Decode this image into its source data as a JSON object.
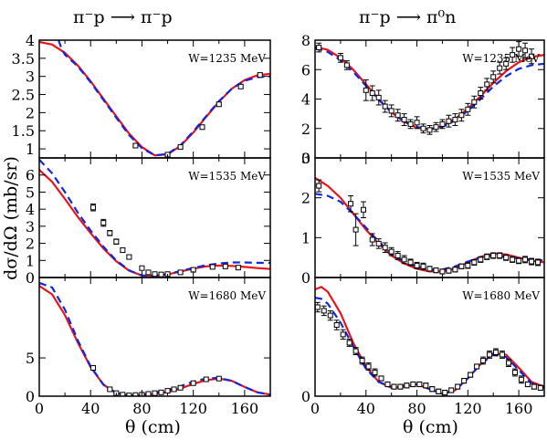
{
  "column_titles": {
    "left": "π⁻p ⟶ π⁻p",
    "right": "π⁻p ⟶ π⁰n"
  },
  "axis_labels": {
    "y": "dσ/dΩ (mb/sr)",
    "x_left": "θ (cm)",
    "x_right": "θ (cm)"
  },
  "colors": {
    "model_solid": "#e8141b",
    "model_dashed": "#1327e0",
    "data_marker": "#000000"
  },
  "chart_data": [
    {
      "type": "line",
      "panel": "left-top",
      "annotation": "W=1235 MeV",
      "xlim": [
        0,
        180
      ],
      "ylim": [
        0.75,
        4.0
      ],
      "xticks": [
        0,
        40,
        80,
        120,
        160
      ],
      "yticks": [
        1,
        1.5,
        2,
        2.5,
        3,
        3.5,
        4
      ],
      "ytick_labels": [
        "1",
        "1.5",
        "2",
        "2.5",
        "3",
        "3.5",
        "4"
      ],
      "series": [
        {
          "style": "solid",
          "x": [
            0,
            10,
            20,
            30,
            40,
            50,
            60,
            70,
            80,
            90,
            100,
            110,
            120,
            130,
            140,
            150,
            160,
            170,
            180
          ],
          "y": [
            3.95,
            3.88,
            3.65,
            3.3,
            2.87,
            2.38,
            1.9,
            1.42,
            1.05,
            0.82,
            0.85,
            1.08,
            1.45,
            1.88,
            2.3,
            2.66,
            2.9,
            3.03,
            3.07
          ]
        },
        {
          "style": "dashed",
          "x": [
            15,
            17,
            20,
            30,
            40,
            50,
            60,
            70,
            80,
            90,
            100,
            110,
            120,
            130,
            140,
            150,
            160,
            170,
            180
          ],
          "y": [
            4.0,
            3.8,
            3.6,
            3.28,
            2.84,
            2.35,
            1.86,
            1.38,
            1.02,
            0.82,
            0.86,
            1.1,
            1.48,
            1.9,
            2.32,
            2.66,
            2.88,
            2.98,
            3.0
          ]
        }
      ],
      "data_points": {
        "x": [
          75,
          100,
          110,
          127,
          140,
          157,
          172
        ],
        "y": [
          1.09,
          0.84,
          1.05,
          1.6,
          2.23,
          2.72,
          3.04
        ],
        "err": [
          0.03,
          0.03,
          0.03,
          0.03,
          0.04,
          0.04,
          0.05
        ]
      }
    },
    {
      "type": "line",
      "panel": "left-middle",
      "annotation": "W=1535 MeV",
      "xlim": [
        0,
        180
      ],
      "ylim": [
        0,
        7
      ],
      "xticks": [
        0,
        40,
        80,
        120,
        160
      ],
      "yticks": [
        0,
        1,
        2,
        3,
        4,
        5,
        6
      ],
      "ytick_labels": [
        "0",
        "1",
        "2",
        "3",
        "4",
        "5",
        "6"
      ],
      "series": [
        {
          "style": "solid",
          "x": [
            0,
            10,
            20,
            30,
            40,
            50,
            60,
            70,
            80,
            90,
            100,
            110,
            120,
            130,
            140,
            150,
            160,
            170,
            180
          ],
          "y": [
            6.3,
            5.6,
            4.6,
            3.55,
            2.6,
            1.7,
            0.95,
            0.4,
            0.12,
            0.1,
            0.18,
            0.35,
            0.52,
            0.65,
            0.7,
            0.68,
            0.62,
            0.55,
            0.5
          ]
        },
        {
          "style": "dashed",
          "x": [
            0,
            10,
            20,
            30,
            40,
            50,
            60,
            70,
            80,
            90,
            100,
            110,
            120,
            130,
            140,
            150,
            160,
            170,
            180
          ],
          "y": [
            6.9,
            6.1,
            5.0,
            3.8,
            2.75,
            1.8,
            1.0,
            0.42,
            0.12,
            0.1,
            0.2,
            0.38,
            0.56,
            0.72,
            0.82,
            0.88,
            0.88,
            0.86,
            0.85
          ]
        }
      ],
      "data_points": {
        "x": [
          42,
          50,
          55,
          60,
          65,
          70,
          80,
          85,
          90,
          95,
          100,
          110,
          120,
          135,
          145,
          155
        ],
        "y": [
          4.1,
          3.2,
          2.6,
          2.1,
          1.6,
          1.2,
          0.55,
          0.3,
          0.2,
          0.18,
          0.2,
          0.3,
          0.45,
          0.62,
          0.65,
          0.58
        ],
        "err": [
          0.2,
          0.2,
          0.15,
          0.15,
          0.12,
          0.1,
          0.08,
          0.06,
          0.05,
          0.05,
          0.05,
          0.05,
          0.05,
          0.05,
          0.05,
          0.05
        ]
      }
    },
    {
      "type": "line",
      "panel": "left-bottom",
      "annotation": "W=1680 MeV",
      "xlim": [
        0,
        180
      ],
      "ylim": [
        0,
        15.5
      ],
      "xticks": [
        0,
        40,
        80,
        120,
        160
      ],
      "xtick_labels": [
        "0",
        "40",
        "80",
        "120",
        "160"
      ],
      "yticks": [
        0,
        5
      ],
      "ytick_labels": [
        "0",
        "5"
      ],
      "series": [
        {
          "style": "solid",
          "x": [
            0,
            10,
            20,
            30,
            40,
            50,
            60,
            70,
            80,
            90,
            100,
            110,
            120,
            130,
            140,
            150,
            160,
            170,
            180
          ],
          "y": [
            14.4,
            13.3,
            10.6,
            7.0,
            3.8,
            1.5,
            0.4,
            0.1,
            0.15,
            0.3,
            0.55,
            1.0,
            1.6,
            2.1,
            2.3,
            2.0,
            1.2,
            0.5,
            0.2
          ]
        },
        {
          "style": "dashed",
          "x": [
            0,
            10,
            20,
            30,
            40,
            50,
            60,
            70,
            80,
            90,
            100,
            110,
            120,
            130,
            140,
            150,
            160,
            170,
            180
          ],
          "y": [
            14.8,
            14.2,
            11.3,
            7.3,
            3.9,
            1.5,
            0.4,
            0.1,
            0.2,
            0.45,
            0.8,
            1.3,
            1.9,
            2.3,
            2.4,
            2.0,
            1.2,
            0.5,
            0.2
          ]
        }
      ],
      "data_points": {
        "x": [
          42,
          55,
          60,
          65,
          70,
          75,
          80,
          85,
          90,
          95,
          100,
          105,
          110,
          120,
          130,
          140
        ],
        "y": [
          3.7,
          0.9,
          0.4,
          0.2,
          0.1,
          0.15,
          0.2,
          0.3,
          0.4,
          0.5,
          0.7,
          0.9,
          1.1,
          1.7,
          2.2,
          2.3
        ],
        "err": [
          0.3,
          0.1,
          0.05,
          0.05,
          0.05,
          0.05,
          0.05,
          0.05,
          0.05,
          0.05,
          0.08,
          0.08,
          0.08,
          0.1,
          0.12,
          0.15
        ]
      }
    },
    {
      "type": "line",
      "panel": "right-top",
      "annotation": "W=1235 MeV",
      "xlim": [
        0,
        180
      ],
      "ylim": [
        0,
        8
      ],
      "xticks": [
        0,
        40,
        80,
        120,
        160
      ],
      "yticks": [
        0,
        2,
        4,
        6,
        8
      ],
      "ytick_labels": [
        "0",
        "2",
        "4",
        "6",
        "8"
      ],
      "series": [
        {
          "style": "solid",
          "x": [
            0,
            10,
            20,
            30,
            40,
            50,
            60,
            70,
            80,
            90,
            100,
            110,
            120,
            130,
            140,
            150,
            160,
            170,
            180
          ],
          "y": [
            7.55,
            7.35,
            6.8,
            6.0,
            5.0,
            4.0,
            3.1,
            2.45,
            2.05,
            1.95,
            2.15,
            2.65,
            3.35,
            4.2,
            5.1,
            5.9,
            6.5,
            6.85,
            7.0
          ]
        },
        {
          "style": "dashed",
          "x": [
            0,
            10,
            20,
            30,
            40,
            50,
            60,
            70,
            80,
            90,
            100,
            110,
            120,
            130,
            140,
            150,
            160,
            170,
            180
          ],
          "y": [
            7.45,
            7.2,
            6.65,
            5.85,
            4.9,
            3.95,
            3.1,
            2.5,
            2.1,
            1.95,
            2.1,
            2.55,
            3.2,
            4.0,
            4.85,
            5.55,
            6.05,
            6.3,
            6.4
          ]
        }
      ],
      "data_points": {
        "x": [
          3,
          20,
          25,
          40,
          45,
          50,
          55,
          60,
          65,
          70,
          75,
          80,
          85,
          90,
          95,
          100,
          105,
          110,
          115,
          120,
          125,
          130,
          135,
          140,
          145,
          150,
          155,
          160,
          165,
          170
        ],
        "y": [
          7.5,
          6.8,
          6.3,
          4.6,
          4.4,
          4.1,
          3.5,
          3.2,
          2.9,
          2.6,
          2.3,
          2.4,
          2.0,
          1.9,
          2.1,
          2.3,
          2.5,
          2.6,
          2.9,
          3.3,
          3.8,
          4.4,
          5.0,
          5.5,
          6.1,
          6.4,
          7.0,
          7.4,
          7.3,
          6.9
        ],
        "err": [
          0.3,
          0.3,
          0.3,
          0.7,
          0.5,
          0.5,
          0.4,
          0.4,
          0.4,
          0.4,
          0.3,
          0.4,
          0.3,
          0.3,
          0.3,
          0.3,
          0.4,
          0.4,
          0.4,
          0.4,
          0.4,
          0.4,
          0.4,
          0.4,
          0.4,
          0.4,
          0.5,
          0.5,
          0.5,
          0.5
        ]
      }
    },
    {
      "type": "line",
      "panel": "right-middle",
      "annotation": "W=1535 MeV",
      "xlim": [
        0,
        180
      ],
      "ylim": [
        0,
        3
      ],
      "xticks": [
        0,
        40,
        80,
        120,
        160
      ],
      "yticks": [
        0,
        1,
        2,
        3
      ],
      "ytick_labels": [
        "0",
        "1",
        "2",
        "3"
      ],
      "series": [
        {
          "style": "solid",
          "x": [
            0,
            10,
            20,
            30,
            40,
            50,
            60,
            70,
            80,
            90,
            100,
            110,
            120,
            130,
            140,
            150,
            160,
            170,
            180
          ],
          "y": [
            2.5,
            2.3,
            2.0,
            1.6,
            1.2,
            0.85,
            0.55,
            0.35,
            0.22,
            0.15,
            0.15,
            0.22,
            0.38,
            0.52,
            0.6,
            0.58,
            0.5,
            0.42,
            0.38
          ]
        },
        {
          "style": "dashed",
          "x": [
            0,
            10,
            20,
            30,
            40,
            50,
            60,
            70,
            80,
            90,
            100,
            110,
            120,
            130,
            140,
            150,
            160,
            170,
            180
          ],
          "y": [
            2.1,
            2.05,
            1.9,
            1.6,
            1.25,
            0.9,
            0.6,
            0.4,
            0.28,
            0.2,
            0.2,
            0.28,
            0.4,
            0.5,
            0.55,
            0.52,
            0.48,
            0.45,
            0.43
          ]
        }
      ],
      "data_points": {
        "x": [
          3,
          28,
          32,
          38,
          45,
          50,
          55,
          60,
          65,
          70,
          75,
          80,
          85,
          90,
          95,
          100,
          105,
          110,
          115,
          120,
          125,
          130,
          135,
          140,
          145,
          150,
          155,
          160,
          165,
          170,
          175
        ],
        "y": [
          2.3,
          1.85,
          1.2,
          1.7,
          0.95,
          0.85,
          0.75,
          0.65,
          0.55,
          0.45,
          0.38,
          0.3,
          0.28,
          0.22,
          0.18,
          0.15,
          0.17,
          0.2,
          0.28,
          0.3,
          0.38,
          0.45,
          0.52,
          0.55,
          0.55,
          0.5,
          0.45,
          0.42,
          0.45,
          0.4,
          0.38
        ],
        "err": [
          0.15,
          0.2,
          0.4,
          0.2,
          0.15,
          0.12,
          0.12,
          0.1,
          0.1,
          0.1,
          0.08,
          0.08,
          0.08,
          0.06,
          0.06,
          0.06,
          0.06,
          0.06,
          0.06,
          0.07,
          0.07,
          0.07,
          0.07,
          0.07,
          0.07,
          0.07,
          0.07,
          0.07,
          0.08,
          0.08,
          0.08
        ]
      }
    },
    {
      "type": "line",
      "panel": "right-bottom",
      "annotation": "W=1680 MeV",
      "xlim": [
        0,
        180
      ],
      "ylim": [
        0,
        1.0
      ],
      "xticks": [
        0,
        40,
        80,
        120,
        160
      ],
      "xtick_labels": [
        "0",
        "40",
        "80",
        "120",
        "160"
      ],
      "yticks": [
        0
      ],
      "ytick_labels": [
        "0"
      ],
      "series": [
        {
          "style": "solid",
          "x": [
            0,
            5,
            10,
            20,
            30,
            40,
            50,
            60,
            70,
            80,
            90,
            100,
            110,
            120,
            130,
            140,
            150,
            160,
            170,
            180
          ],
          "y": [
            0.9,
            0.92,
            0.88,
            0.7,
            0.45,
            0.25,
            0.12,
            0.07,
            0.08,
            0.1,
            0.06,
            0.02,
            0.05,
            0.15,
            0.27,
            0.36,
            0.35,
            0.24,
            0.12,
            0.08
          ]
        },
        {
          "style": "dashed",
          "x": [
            0,
            5,
            10,
            20,
            30,
            40,
            50,
            60,
            70,
            80,
            90,
            100,
            110,
            120,
            130,
            140,
            150,
            160,
            170,
            180
          ],
          "y": [
            0.83,
            0.82,
            0.78,
            0.62,
            0.42,
            0.23,
            0.12,
            0.08,
            0.09,
            0.1,
            0.06,
            0.02,
            0.05,
            0.15,
            0.27,
            0.35,
            0.33,
            0.22,
            0.11,
            0.07
          ]
        }
      ],
      "data_points": {
        "x": [
          2,
          7,
          12,
          17,
          22,
          27,
          32,
          37,
          42,
          47,
          52,
          57,
          62,
          67,
          72,
          77,
          82,
          87,
          92,
          97,
          102,
          107,
          112,
          117,
          122,
          127,
          132,
          137,
          142,
          147,
          152,
          157,
          162,
          167,
          172,
          177
        ],
        "y": [
          0.75,
          0.72,
          0.68,
          0.6,
          0.52,
          0.45,
          0.38,
          0.3,
          0.25,
          0.2,
          0.15,
          0.1,
          0.08,
          0.08,
          0.09,
          0.1,
          0.1,
          0.09,
          0.06,
          0.04,
          0.03,
          0.05,
          0.08,
          0.13,
          0.18,
          0.25,
          0.3,
          0.35,
          0.37,
          0.35,
          0.28,
          0.2,
          0.14,
          0.1,
          0.08,
          0.07
        ],
        "err": [
          0.04,
          0.04,
          0.04,
          0.04,
          0.04,
          0.03,
          0.03,
          0.03,
          0.03,
          0.03,
          0.02,
          0.02,
          0.02,
          0.02,
          0.02,
          0.02,
          0.02,
          0.02,
          0.02,
          0.02,
          0.02,
          0.02,
          0.02,
          0.02,
          0.02,
          0.02,
          0.03,
          0.03,
          0.03,
          0.03,
          0.03,
          0.03,
          0.03,
          0.02,
          0.02,
          0.02
        ]
      }
    }
  ]
}
